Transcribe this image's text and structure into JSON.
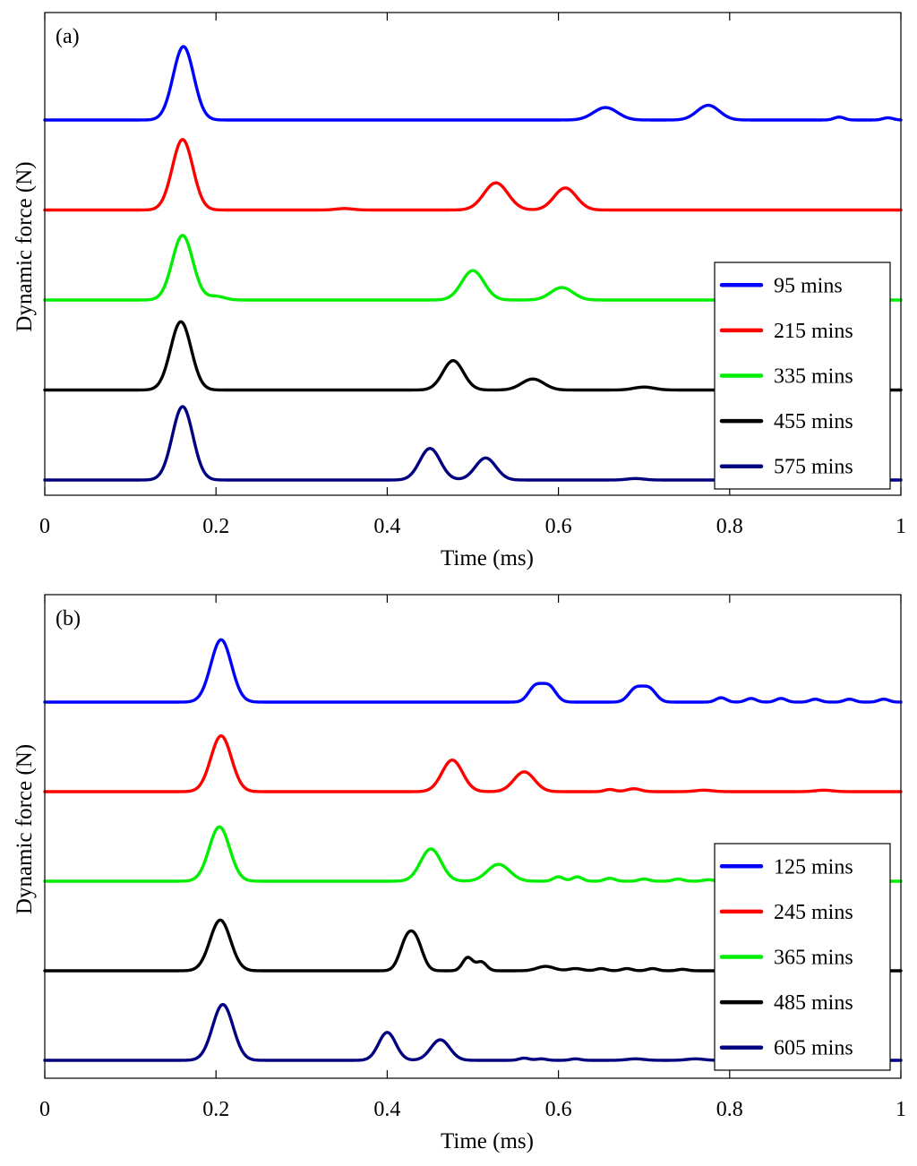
{
  "chart_data": [
    {
      "type": "line",
      "panel_label": "(a)",
      "xlabel": "Time (ms)",
      "ylabel": "Dynamic force (N)",
      "xlim": [
        0,
        1
      ],
      "xticks": [
        0,
        0.2,
        0.4,
        0.6,
        0.8,
        1
      ],
      "xtick_labels": [
        "0",
        "0.2",
        "0.4",
        "0.6",
        "0.8",
        "1"
      ],
      "yticks_shown": false,
      "grid": false,
      "legend_position": "right",
      "series": [
        {
          "name": "95 mins",
          "color": "#0000ff",
          "offset": 4,
          "peaks": [
            [
              0.162,
              1.0,
              0.012
            ],
            [
              0.655,
              0.17,
              0.014
            ],
            [
              0.775,
              0.2,
              0.013
            ],
            [
              0.928,
              0.04,
              0.006
            ],
            [
              0.985,
              0.03,
              0.006
            ]
          ]
        },
        {
          "name": "215 mins",
          "color": "#ff0000",
          "offset": 3,
          "peaks": [
            [
              0.161,
              0.96,
              0.012
            ],
            [
              0.527,
              0.37,
              0.014
            ],
            [
              0.608,
              0.3,
              0.013
            ],
            [
              0.35,
              0.02,
              0.01
            ]
          ]
        },
        {
          "name": "335 mins",
          "color": "#00ee00",
          "offset": 2,
          "peaks": [
            [
              0.161,
              0.88,
              0.012
            ],
            [
              0.2,
              0.05,
              0.01
            ],
            [
              0.5,
              0.4,
              0.013
            ],
            [
              0.604,
              0.17,
              0.013
            ]
          ]
        },
        {
          "name": "455 mins",
          "color": "#000000",
          "offset": 1,
          "peaks": [
            [
              0.159,
              0.93,
              0.012
            ],
            [
              0.477,
              0.4,
              0.012
            ],
            [
              0.57,
              0.15,
              0.013
            ],
            [
              0.7,
              0.04,
              0.012
            ]
          ]
        },
        {
          "name": "575 mins",
          "color": "#000080",
          "offset": 0,
          "peaks": [
            [
              0.161,
              1.0,
              0.012
            ],
            [
              0.45,
              0.43,
              0.012
            ],
            [
              0.515,
              0.3,
              0.012
            ],
            [
              0.69,
              0.02,
              0.01
            ]
          ]
        }
      ]
    },
    {
      "type": "line",
      "panel_label": "(b)",
      "xlabel": "Time (ms)",
      "ylabel": "Dynamic force (N)",
      "xlim": [
        0,
        1
      ],
      "xticks": [
        0,
        0.2,
        0.4,
        0.6,
        0.8,
        1
      ],
      "xtick_labels": [
        "0",
        "0.2",
        "0.4",
        "0.6",
        "0.8",
        "1"
      ],
      "yticks_shown": false,
      "grid": false,
      "legend_position": "right",
      "series": [
        {
          "name": "125 mins",
          "color": "#0000ff",
          "offset": 4,
          "peaks": [
            [
              0.206,
              0.85,
              0.012
            ],
            [
              0.573,
              0.21,
              0.008
            ],
            [
              0.589,
              0.21,
              0.008
            ],
            [
              0.69,
              0.18,
              0.008
            ],
            [
              0.706,
              0.18,
              0.008
            ],
            [
              0.79,
              0.06,
              0.006
            ],
            [
              0.825,
              0.05,
              0.006
            ],
            [
              0.86,
              0.05,
              0.006
            ],
            [
              0.9,
              0.04,
              0.006
            ],
            [
              0.94,
              0.04,
              0.006
            ],
            [
              0.98,
              0.04,
              0.006
            ]
          ]
        },
        {
          "name": "245 mins",
          "color": "#ff0000",
          "offset": 3,
          "peaks": [
            [
              0.206,
              0.76,
              0.012
            ],
            [
              0.476,
              0.43,
              0.012
            ],
            [
              0.56,
              0.27,
              0.012
            ],
            [
              0.66,
              0.03,
              0.006
            ],
            [
              0.688,
              0.04,
              0.008
            ],
            [
              0.77,
              0.02,
              0.01
            ],
            [
              0.91,
              0.02,
              0.01
            ]
          ]
        },
        {
          "name": "365 mins",
          "color": "#00ee00",
          "offset": 2,
          "peaks": [
            [
              0.204,
              0.74,
              0.012
            ],
            [
              0.451,
              0.44,
              0.012
            ],
            [
              0.53,
              0.23,
              0.013
            ],
            [
              0.6,
              0.06,
              0.006
            ],
            [
              0.622,
              0.06,
              0.006
            ],
            [
              0.66,
              0.04,
              0.006
            ],
            [
              0.7,
              0.03,
              0.006
            ],
            [
              0.74,
              0.03,
              0.006
            ],
            [
              0.775,
              0.02,
              0.006
            ]
          ]
        },
        {
          "name": "485 mins",
          "color": "#000000",
          "offset": 1,
          "peaks": [
            [
              0.205,
              0.69,
              0.012
            ],
            [
              0.422,
              0.36,
              0.008
            ],
            [
              0.434,
              0.36,
              0.008
            ],
            [
              0.494,
              0.18,
              0.006
            ],
            [
              0.51,
              0.12,
              0.006
            ],
            [
              0.585,
              0.06,
              0.01
            ],
            [
              0.62,
              0.03,
              0.008
            ],
            [
              0.65,
              0.03,
              0.006
            ],
            [
              0.68,
              0.03,
              0.006
            ],
            [
              0.71,
              0.03,
              0.006
            ],
            [
              0.745,
              0.02,
              0.006
            ]
          ]
        },
        {
          "name": "605 mins",
          "color": "#000080",
          "offset": 0,
          "peaks": [
            [
              0.208,
              0.76,
              0.012
            ],
            [
              0.4,
              0.38,
              0.01
            ],
            [
              0.462,
              0.28,
              0.011
            ],
            [
              0.56,
              0.03,
              0.006
            ],
            [
              0.58,
              0.02,
              0.006
            ],
            [
              0.62,
              0.02,
              0.006
            ],
            [
              0.69,
              0.02,
              0.01
            ],
            [
              0.76,
              0.02,
              0.01
            ]
          ]
        }
      ]
    }
  ]
}
